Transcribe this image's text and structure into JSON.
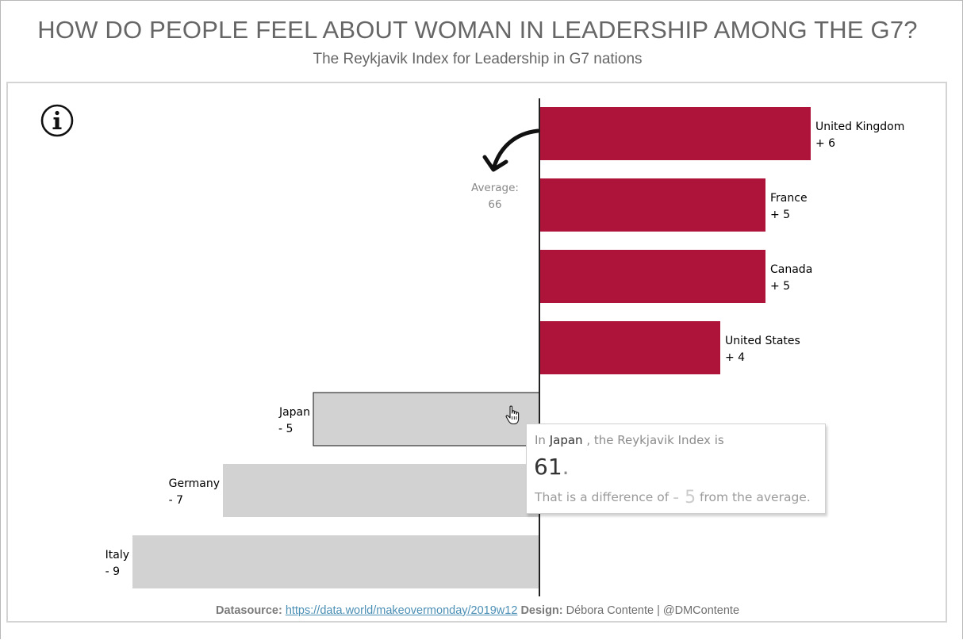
{
  "header": {
    "title": "HOW DO PEOPLE FEEL ABOUT WOMAN IN LEADERSHIP AMONG THE G7?",
    "subtitle": "The Reykjavik Index for Leadership in G7 nations"
  },
  "icons": {
    "info": "info-icon",
    "arrow": "curved-arrow-icon",
    "cursor": "hand-pointer-icon"
  },
  "colors": {
    "positive": "#ae1339",
    "negative": "#d2d2d2",
    "axis": "#222222",
    "link": "#4b8fb5"
  },
  "chart_data": {
    "type": "bar",
    "orientation": "horizontal-diverging",
    "title": "HOW DO PEOPLE FEEL ABOUT WOMAN IN LEADERSHIP AMONG THE G7?",
    "subtitle": "The Reykjavik Index for Leadership in G7 nations",
    "baseline_label": "Average:",
    "baseline_value": 66,
    "categories": [
      "United Kingdom",
      "France",
      "Canada",
      "United States",
      "Japan",
      "Germany",
      "Italy"
    ],
    "values": [
      6,
      5,
      5,
      4,
      -5,
      -7,
      -9
    ],
    "value_labels": [
      "+ 6",
      "+ 5",
      "+ 5",
      "+ 4",
      "- 5",
      "- 7",
      "- 9"
    ],
    "xlim": [
      -10,
      8
    ],
    "xlabel": "",
    "ylabel": "",
    "grid": false,
    "legend": "none",
    "highlighted": "Japan"
  },
  "tooltip": {
    "prefix": "In ",
    "country": "Japan",
    "suffix": " , the Reykjavik Index is",
    "value": "61",
    "value_dot": ".",
    "diff_prefix": "That is a difference of ",
    "diff": "- 5",
    "diff_suffix": " from the average."
  },
  "footer": {
    "datasource_label": "Datasource:",
    "datasource_link": "https://data.world/makeovermonday/2019w12",
    "design_label": "Design:",
    "design_text": "Débora Contente | @DMContente"
  }
}
